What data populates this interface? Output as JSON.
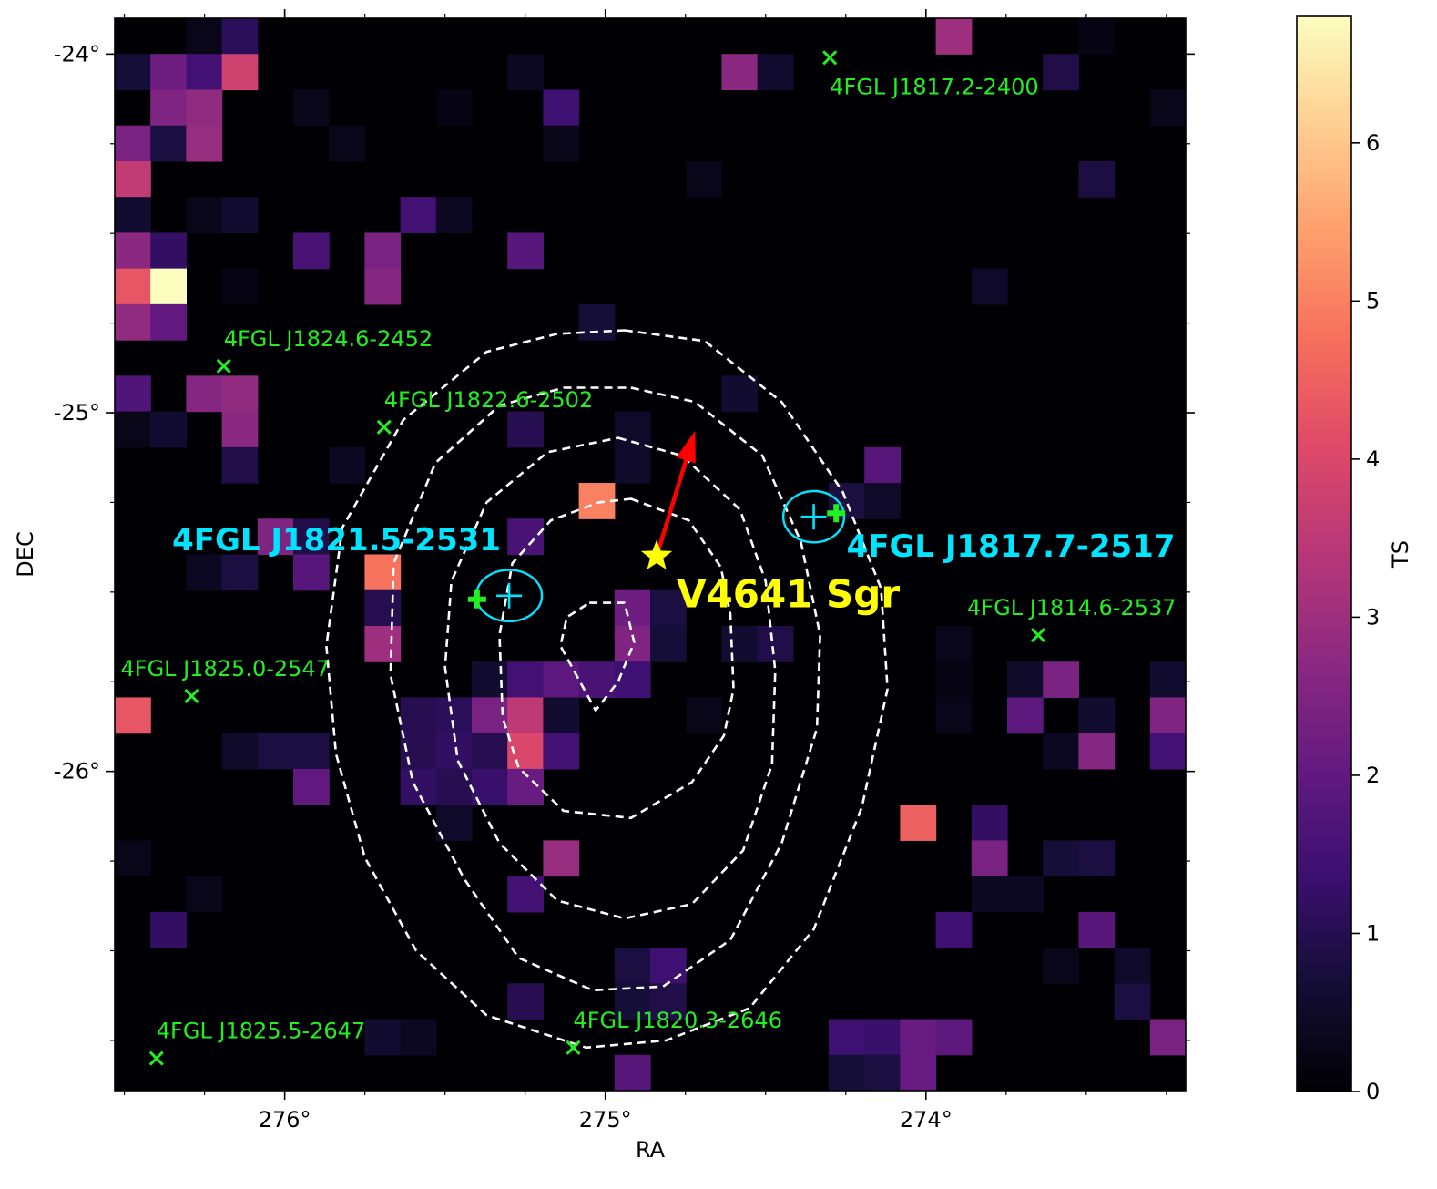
{
  "chart_data": {
    "type": "heatmap",
    "xlabel": "RA",
    "ylabel": "DEC",
    "xlim": [
      276.53,
      273.19
    ],
    "ylim": [
      -26.89,
      -23.9
    ],
    "x_ticks": [
      {
        "value": 276,
        "label": "276°"
      },
      {
        "value": 275,
        "label": "275°"
      },
      {
        "value": 274,
        "label": "274°"
      }
    ],
    "y_ticks": [
      {
        "value": -24,
        "label": "-24°"
      },
      {
        "value": -25,
        "label": "-25°"
      },
      {
        "value": -26,
        "label": "-26°"
      }
    ],
    "colorbar": {
      "label": "TS",
      "range": [
        0,
        6.8
      ],
      "ticks": [
        0,
        1,
        2,
        3,
        4,
        5,
        6
      ],
      "colormap": "magma"
    },
    "grid": {
      "nx": 30,
      "ny": 30,
      "row_order": "top-to-bottom",
      "cells": [
        {
          "c": 2,
          "r": 0,
          "v": 0.3
        },
        {
          "c": 3,
          "r": 0,
          "v": 1.1
        },
        {
          "c": 23,
          "r": 0,
          "v": 3.0
        },
        {
          "c": 27,
          "r": 0,
          "v": 0.2
        },
        {
          "c": 0,
          "r": 1,
          "v": 0.7
        },
        {
          "c": 1,
          "r": 1,
          "v": 2.2
        },
        {
          "c": 2,
          "r": 1,
          "v": 1.5
        },
        {
          "c": 3,
          "r": 1,
          "v": 3.8
        },
        {
          "c": 11,
          "r": 1,
          "v": 0.4
        },
        {
          "c": 17,
          "r": 1,
          "v": 2.7
        },
        {
          "c": 18,
          "r": 1,
          "v": 0.6
        },
        {
          "c": 26,
          "r": 1,
          "v": 0.9
        },
        {
          "c": 1,
          "r": 2,
          "v": 2.5
        },
        {
          "c": 2,
          "r": 2,
          "v": 2.8
        },
        {
          "c": 5,
          "r": 2,
          "v": 0.3
        },
        {
          "c": 9,
          "r": 2,
          "v": 0.2
        },
        {
          "c": 12,
          "r": 2,
          "v": 1.4
        },
        {
          "c": 29,
          "r": 2,
          "v": 0.3
        },
        {
          "c": 0,
          "r": 3,
          "v": 2.4
        },
        {
          "c": 1,
          "r": 3,
          "v": 0.8
        },
        {
          "c": 2,
          "r": 3,
          "v": 2.9
        },
        {
          "c": 6,
          "r": 3,
          "v": 0.3
        },
        {
          "c": 12,
          "r": 3,
          "v": 0.3
        },
        {
          "c": 0,
          "r": 4,
          "v": 3.6
        },
        {
          "c": 16,
          "r": 4,
          "v": 0.3
        },
        {
          "c": 27,
          "r": 4,
          "v": 0.8
        },
        {
          "c": 0,
          "r": 5,
          "v": 0.6
        },
        {
          "c": 2,
          "r": 5,
          "v": 0.3
        },
        {
          "c": 3,
          "r": 5,
          "v": 0.6
        },
        {
          "c": 8,
          "r": 5,
          "v": 1.5
        },
        {
          "c": 9,
          "r": 5,
          "v": 0.4
        },
        {
          "c": 0,
          "r": 6,
          "v": 2.7
        },
        {
          "c": 1,
          "r": 6,
          "v": 1.2
        },
        {
          "c": 5,
          "r": 6,
          "v": 1.6
        },
        {
          "c": 7,
          "r": 6,
          "v": 2.4
        },
        {
          "c": 11,
          "r": 6,
          "v": 1.8
        },
        {
          "c": 0,
          "r": 7,
          "v": 4.3
        },
        {
          "c": 1,
          "r": 7,
          "v": 6.8
        },
        {
          "c": 3,
          "r": 7,
          "v": 0.2
        },
        {
          "c": 7,
          "r": 7,
          "v": 2.6
        },
        {
          "c": 24,
          "r": 7,
          "v": 0.5
        },
        {
          "c": 0,
          "r": 8,
          "v": 2.8
        },
        {
          "c": 1,
          "r": 8,
          "v": 2.0
        },
        {
          "c": 13,
          "r": 8,
          "v": 0.7
        },
        {
          "c": 0,
          "r": 10,
          "v": 1.7
        },
        {
          "c": 2,
          "r": 10,
          "v": 2.6
        },
        {
          "c": 3,
          "r": 10,
          "v": 2.8
        },
        {
          "c": 17,
          "r": 10,
          "v": 0.6
        },
        {
          "c": 0,
          "r": 11,
          "v": 0.3
        },
        {
          "c": 1,
          "r": 11,
          "v": 0.6
        },
        {
          "c": 3,
          "r": 11,
          "v": 2.7
        },
        {
          "c": 11,
          "r": 11,
          "v": 1.0
        },
        {
          "c": 14,
          "r": 11,
          "v": 0.5
        },
        {
          "c": 3,
          "r": 12,
          "v": 0.9
        },
        {
          "c": 6,
          "r": 12,
          "v": 0.4
        },
        {
          "c": 14,
          "r": 12,
          "v": 0.5
        },
        {
          "c": 21,
          "r": 12,
          "v": 1.8
        },
        {
          "c": 13,
          "r": 13,
          "v": 5.0
        },
        {
          "c": 20,
          "r": 13,
          "v": 0.8
        },
        {
          "c": 21,
          "r": 13,
          "v": 0.5
        },
        {
          "c": 4,
          "r": 14,
          "v": 2.5
        },
        {
          "c": 5,
          "r": 14,
          "v": 0.9
        },
        {
          "c": 11,
          "r": 14,
          "v": 1.6
        },
        {
          "c": 2,
          "r": 15,
          "v": 0.4
        },
        {
          "c": 3,
          "r": 15,
          "v": 0.8
        },
        {
          "c": 5,
          "r": 15,
          "v": 1.8
        },
        {
          "c": 7,
          "r": 15,
          "v": 4.8
        },
        {
          "c": 7,
          "r": 16,
          "v": 1.0
        },
        {
          "c": 14,
          "r": 16,
          "v": 2.2
        },
        {
          "c": 15,
          "r": 16,
          "v": 0.8
        },
        {
          "c": 7,
          "r": 17,
          "v": 3.0
        },
        {
          "c": 14,
          "r": 17,
          "v": 2.5
        },
        {
          "c": 15,
          "r": 17,
          "v": 0.7
        },
        {
          "c": 17,
          "r": 17,
          "v": 0.6
        },
        {
          "c": 18,
          "r": 17,
          "v": 0.9
        },
        {
          "c": 23,
          "r": 17,
          "v": 0.3
        },
        {
          "c": 10,
          "r": 18,
          "v": 0.6
        },
        {
          "c": 11,
          "r": 18,
          "v": 1.5
        },
        {
          "c": 12,
          "r": 18,
          "v": 1.9
        },
        {
          "c": 13,
          "r": 18,
          "v": 1.6
        },
        {
          "c": 14,
          "r": 18,
          "v": 1.4
        },
        {
          "c": 23,
          "r": 18,
          "v": 0.2
        },
        {
          "c": 25,
          "r": 18,
          "v": 0.5
        },
        {
          "c": 26,
          "r": 18,
          "v": 2.4
        },
        {
          "c": 29,
          "r": 18,
          "v": 0.6
        },
        {
          "c": 0,
          "r": 19,
          "v": 4.3
        },
        {
          "c": 8,
          "r": 19,
          "v": 1.0
        },
        {
          "c": 9,
          "r": 19,
          "v": 1.1
        },
        {
          "c": 10,
          "r": 19,
          "v": 2.4
        },
        {
          "c": 11,
          "r": 19,
          "v": 3.5
        },
        {
          "c": 12,
          "r": 19,
          "v": 0.6
        },
        {
          "c": 16,
          "r": 19,
          "v": 0.3
        },
        {
          "c": 23,
          "r": 19,
          "v": 0.3
        },
        {
          "c": 25,
          "r": 19,
          "v": 1.9
        },
        {
          "c": 27,
          "r": 19,
          "v": 0.6
        },
        {
          "c": 29,
          "r": 19,
          "v": 2.5
        },
        {
          "c": 3,
          "r": 20,
          "v": 0.5
        },
        {
          "c": 4,
          "r": 20,
          "v": 0.8
        },
        {
          "c": 5,
          "r": 20,
          "v": 0.8
        },
        {
          "c": 8,
          "r": 20,
          "v": 1.0
        },
        {
          "c": 9,
          "r": 20,
          "v": 1.2
        },
        {
          "c": 10,
          "r": 20,
          "v": 1.0
        },
        {
          "c": 11,
          "r": 20,
          "v": 4.0
        },
        {
          "c": 12,
          "r": 20,
          "v": 1.5
        },
        {
          "c": 26,
          "r": 20,
          "v": 0.4
        },
        {
          "c": 27,
          "r": 20,
          "v": 2.6
        },
        {
          "c": 29,
          "r": 20,
          "v": 1.5
        },
        {
          "c": 5,
          "r": 21,
          "v": 2.0
        },
        {
          "c": 8,
          "r": 21,
          "v": 1.2
        },
        {
          "c": 9,
          "r": 21,
          "v": 1.0
        },
        {
          "c": 10,
          "r": 21,
          "v": 1.3
        },
        {
          "c": 11,
          "r": 21,
          "v": 2.1
        },
        {
          "c": 9,
          "r": 22,
          "v": 0.5
        },
        {
          "c": 22,
          "r": 22,
          "v": 4.5
        },
        {
          "c": 24,
          "r": 22,
          "v": 1.2
        },
        {
          "c": 0,
          "r": 23,
          "v": 0.3
        },
        {
          "c": 12,
          "r": 23,
          "v": 2.9
        },
        {
          "c": 24,
          "r": 23,
          "v": 2.4
        },
        {
          "c": 26,
          "r": 23,
          "v": 0.7
        },
        {
          "c": 27,
          "r": 23,
          "v": 0.8
        },
        {
          "c": 2,
          "r": 24,
          "v": 0.3
        },
        {
          "c": 11,
          "r": 24,
          "v": 1.5
        },
        {
          "c": 24,
          "r": 24,
          "v": 0.4
        },
        {
          "c": 25,
          "r": 24,
          "v": 0.4
        },
        {
          "c": 1,
          "r": 25,
          "v": 1.2
        },
        {
          "c": 23,
          "r": 25,
          "v": 1.4
        },
        {
          "c": 27,
          "r": 25,
          "v": 1.8
        },
        {
          "c": 14,
          "r": 26,
          "v": 0.8
        },
        {
          "c": 15,
          "r": 26,
          "v": 1.4
        },
        {
          "c": 26,
          "r": 26,
          "v": 0.3
        },
        {
          "c": 28,
          "r": 26,
          "v": 0.5
        },
        {
          "c": 11,
          "r": 27,
          "v": 1.0
        },
        {
          "c": 14,
          "r": 27,
          "v": 0.7
        },
        {
          "c": 15,
          "r": 27,
          "v": 0.9
        },
        {
          "c": 28,
          "r": 27,
          "v": 0.8
        },
        {
          "c": 7,
          "r": 28,
          "v": 0.6
        },
        {
          "c": 8,
          "r": 28,
          "v": 0.4
        },
        {
          "c": 20,
          "r": 28,
          "v": 1.4
        },
        {
          "c": 21,
          "r": 28,
          "v": 1.3
        },
        {
          "c": 22,
          "r": 28,
          "v": 2.1
        },
        {
          "c": 23,
          "r": 28,
          "v": 1.9
        },
        {
          "c": 29,
          "r": 28,
          "v": 2.4
        },
        {
          "c": 14,
          "r": 29,
          "v": 1.8
        },
        {
          "c": 20,
          "r": 29,
          "v": 0.7
        },
        {
          "c": 21,
          "r": 29,
          "v": 0.8
        },
        {
          "c": 22,
          "r": 29,
          "v": 2.1
        }
      ]
    },
    "contours": [
      {
        "points": [
          [
            275.05,
            -25.53
          ],
          [
            274.94,
            -25.53
          ],
          [
            274.91,
            -25.64
          ],
          [
            274.96,
            -25.75
          ],
          [
            275.03,
            -25.83
          ],
          [
            275.14,
            -25.65
          ],
          [
            275.12,
            -25.57
          ]
        ]
      },
      {
        "points": [
          [
            274.92,
            -25.24
          ],
          [
            274.74,
            -25.3
          ],
          [
            274.64,
            -25.43
          ],
          [
            274.61,
            -25.56
          ],
          [
            274.6,
            -25.77
          ],
          [
            274.63,
            -25.9
          ],
          [
            274.73,
            -26.03
          ],
          [
            274.92,
            -26.13
          ],
          [
            275.13,
            -26.11
          ],
          [
            275.27,
            -25.99
          ],
          [
            275.32,
            -25.85
          ],
          [
            275.33,
            -25.62
          ],
          [
            275.29,
            -25.42
          ],
          [
            275.17,
            -25.3
          ],
          [
            275.02,
            -25.25
          ]
        ]
      },
      {
        "points": [
          [
            274.96,
            -25.07
          ],
          [
            274.76,
            -25.12
          ],
          [
            274.58,
            -25.27
          ],
          [
            274.5,
            -25.47
          ],
          [
            274.47,
            -25.72
          ],
          [
            274.48,
            -25.98
          ],
          [
            274.57,
            -26.22
          ],
          [
            274.73,
            -26.37
          ],
          [
            274.94,
            -26.41
          ],
          [
            275.15,
            -26.36
          ],
          [
            275.33,
            -26.2
          ],
          [
            275.46,
            -25.97
          ],
          [
            275.5,
            -25.71
          ],
          [
            275.48,
            -25.47
          ],
          [
            275.37,
            -25.25
          ],
          [
            275.18,
            -25.11
          ]
        ]
      },
      {
        "points": [
          [
            274.92,
            -24.93
          ],
          [
            274.72,
            -24.97
          ],
          [
            274.51,
            -25.12
          ],
          [
            274.39,
            -25.36
          ],
          [
            274.33,
            -25.62
          ],
          [
            274.34,
            -25.88
          ],
          [
            274.45,
            -26.2
          ],
          [
            274.61,
            -26.47
          ],
          [
            274.82,
            -26.6
          ],
          [
            275.04,
            -26.61
          ],
          [
            275.27,
            -26.52
          ],
          [
            275.44,
            -26.3
          ],
          [
            275.6,
            -26.03
          ],
          [
            275.67,
            -25.73
          ],
          [
            275.66,
            -25.42
          ],
          [
            275.53,
            -25.14
          ],
          [
            275.33,
            -24.98
          ],
          [
            275.13,
            -24.93
          ]
        ]
      },
      {
        "points": [
          [
            274.94,
            -24.77
          ],
          [
            274.69,
            -24.8
          ],
          [
            274.45,
            -24.97
          ],
          [
            274.26,
            -25.22
          ],
          [
            274.14,
            -25.49
          ],
          [
            274.12,
            -25.77
          ],
          [
            274.2,
            -26.1
          ],
          [
            274.35,
            -26.44
          ],
          [
            274.55,
            -26.66
          ],
          [
            274.81,
            -26.75
          ],
          [
            275.06,
            -26.77
          ],
          [
            275.37,
            -26.68
          ],
          [
            275.59,
            -26.5
          ],
          [
            275.75,
            -26.24
          ],
          [
            275.84,
            -25.95
          ],
          [
            275.87,
            -25.65
          ],
          [
            275.82,
            -25.32
          ],
          [
            275.63,
            -25.02
          ],
          [
            275.37,
            -24.83
          ],
          [
            275.15,
            -24.78
          ]
        ]
      }
    ],
    "arrow": {
      "from": [
        274.84,
        -25.4
      ],
      "to": [
        274.72,
        -25.05
      ],
      "color": "#ff0000"
    },
    "target": {
      "label": "V4641 Sgr",
      "ra": 274.84,
      "dec": -25.4,
      "color": "#ffff00"
    },
    "fitted_sources": [
      {
        "label": "4FGL J1821.5-2531",
        "ra": 275.3,
        "dec": -25.51,
        "ellipse": [
          0.14,
          0.1
        ],
        "catalog_ra": 275.4,
        "catalog_dec": -25.52
      },
      {
        "label": "4FGL J1817.7-2517",
        "ra": 274.35,
        "dec": -25.29,
        "ellipse": [
          0.13,
          0.1
        ],
        "catalog_ra": 274.28,
        "catalog_dec": -25.28
      }
    ],
    "catalog_sources": [
      {
        "label": "4FGL J1817.2-2400",
        "ra": 274.3,
        "dec": -24.01
      },
      {
        "label": "4FGL J1824.6-2452",
        "ra": 276.19,
        "dec": -24.87
      },
      {
        "label": "4FGL J1822.6-2502",
        "ra": 275.69,
        "dec": -25.04
      },
      {
        "label": "4FGL J1814.6-2537",
        "ra": 273.65,
        "dec": -25.62
      },
      {
        "label": "4FGL J1825.0-2547",
        "ra": 276.29,
        "dec": -25.79
      },
      {
        "label": "4FGL J1825.5-2647",
        "ra": 276.4,
        "dec": -26.8
      },
      {
        "label": "4FGL J1820.3-2646",
        "ra": 275.1,
        "dec": -26.77
      }
    ],
    "colors": {
      "contour": "#ffffff",
      "fitted": "#00e5ff",
      "catalog": "#22ee22"
    }
  }
}
